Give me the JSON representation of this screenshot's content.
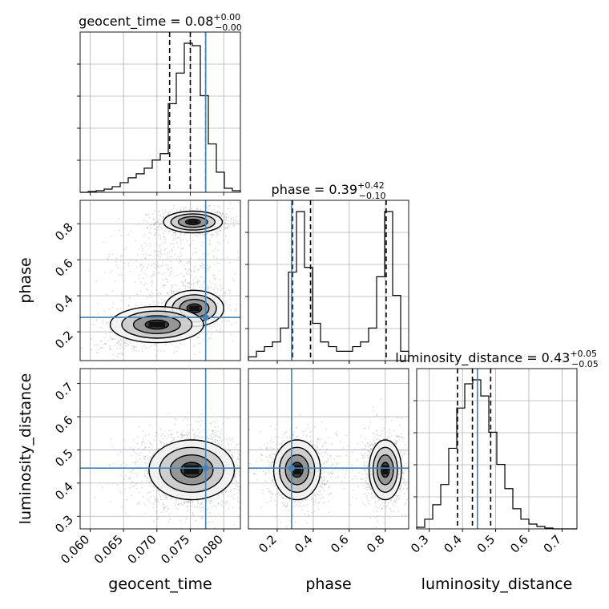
{
  "chart_data": {
    "type": "corner",
    "parameters": [
      "geocent_time",
      "phase",
      "luminosity_distance"
    ],
    "truths": {
      "geocent_time": 0.0773,
      "phase": 0.28,
      "luminosity_distance": 0.445
    },
    "truth_color": "#4682b4",
    "axes": {
      "geocent_time": {
        "range": [
          0.0585,
          0.0825
        ],
        "ticks": [
          "0.060",
          "0.065",
          "0.070",
          "0.075",
          "0.080"
        ],
        "tick_values": [
          0.06,
          0.065,
          0.07,
          0.075,
          0.08
        ]
      },
      "phase": {
        "range": [
          0.04,
          0.93
        ],
        "ticks": [
          "0.2",
          "0.4",
          "0.6",
          "0.8"
        ],
        "tick_values": [
          0.2,
          0.4,
          0.6,
          0.8
        ]
      },
      "luminosity_distance": {
        "range": [
          0.262,
          0.745
        ],
        "ticks": [
          "0.3",
          "0.4",
          "0.5",
          "0.6",
          "0.7"
        ],
        "tick_values": [
          0.3,
          0.4,
          0.5,
          0.6,
          0.7
        ]
      }
    },
    "titles": [
      {
        "param": "geocent_time",
        "base": "geocent_time = 0.08",
        "plus": "+0.00",
        "minus": "−0.00"
      },
      {
        "param": "phase",
        "base": "phase = 0.39",
        "plus": "+0.42",
        "minus": "−0.10"
      },
      {
        "param": "luminosity_distance",
        "base": "luminosity_distance = 0.43",
        "plus": "+0.05",
        "minus": "−0.05"
      }
    ],
    "axis_labels": {
      "geocent_time": "geocent_time",
      "phase": "phase",
      "luminosity_distance": "luminosity_distance"
    },
    "quantile_lines": {
      "geocent_time": [
        0.0719,
        0.075,
        0.0773
      ],
      "phase": [
        0.285,
        0.385,
        0.805
      ],
      "luminosity_distance": [
        0.385,
        0.43,
        0.485
      ]
    },
    "histograms": {
      "geocent_time": {
        "bin_edges": [
          0.0585,
          0.0597,
          0.0609,
          0.0621,
          0.0633,
          0.0645,
          0.0657,
          0.0669,
          0.0681,
          0.0693,
          0.0705,
          0.0717,
          0.0729,
          0.0741,
          0.0753,
          0.0765,
          0.0777,
          0.0789,
          0.0801,
          0.0813,
          0.0825
        ],
        "counts": [
          0,
          1,
          2,
          4,
          7,
          12,
          18,
          23,
          30,
          40,
          48,
          110,
          148,
          185,
          182,
          120,
          60,
          25,
          5,
          2
        ]
      },
      "phase": {
        "bin_edges": [
          0.04,
          0.0845,
          0.129,
          0.1735,
          0.218,
          0.2625,
          0.307,
          0.3515,
          0.396,
          0.4405,
          0.485,
          0.5295,
          0.574,
          0.6185,
          0.663,
          0.7075,
          0.752,
          0.7965,
          0.841,
          0.8855,
          0.93
        ],
        "counts": [
          4,
          10,
          15,
          20,
          35,
          95,
          160,
          100,
          40,
          20,
          15,
          10,
          10,
          15,
          20,
          35,
          90,
          160,
          70,
          10
        ]
      },
      "luminosity_distance": {
        "bin_edges": [
          0.262,
          0.2862,
          0.3103,
          0.3345,
          0.3586,
          0.3828,
          0.4069,
          0.4311,
          0.4552,
          0.4794,
          0.5035,
          0.5277,
          0.5518,
          0.576,
          0.6001,
          0.6243,
          0.6484,
          0.6726,
          0.6967,
          0.7209,
          0.745
        ],
        "counts": [
          2,
          12,
          30,
          55,
          100,
          150,
          180,
          185,
          165,
          120,
          80,
          50,
          25,
          12,
          6,
          3,
          1,
          0,
          0,
          0
        ]
      }
    },
    "density_blobs": {
      "phase_vs_geocent_time": [
        {
          "x": 0.0754,
          "y": 0.81,
          "sx": 0.0022,
          "sy": 0.03,
          "n": 900
        },
        {
          "x": 0.0756,
          "y": 0.33,
          "sx": 0.0022,
          "sy": 0.05,
          "n": 650
        },
        {
          "x": 0.07,
          "y": 0.24,
          "sx": 0.0035,
          "sy": 0.05,
          "n": 350
        },
        {
          "x": 0.066,
          "y": 0.14,
          "sx": 0.0025,
          "sy": 0.03,
          "n": 120
        },
        {
          "x": 0.07,
          "y": 0.58,
          "sx": 0.0035,
          "sy": 0.08,
          "n": 220
        },
        {
          "x": 0.076,
          "y": 0.55,
          "sx": 0.003,
          "sy": 0.1,
          "n": 150
        }
      ],
      "luminosity_distance_vs_geocent_time": [
        {
          "x": 0.0752,
          "y": 0.44,
          "sx": 0.0032,
          "sy": 0.045,
          "n": 2300
        }
      ],
      "luminosity_distance_vs_phase": [
        {
          "x": 0.31,
          "y": 0.44,
          "sx": 0.065,
          "sy": 0.045,
          "n": 1100
        },
        {
          "x": 0.8,
          "y": 0.44,
          "sx": 0.045,
          "sy": 0.045,
          "n": 1000
        },
        {
          "x": 0.55,
          "y": 0.44,
          "sx": 0.15,
          "sy": 0.045,
          "n": 150
        }
      ]
    },
    "contour_levels_sigma": [
      0.5,
      1.0,
      1.5,
      2.0
    ],
    "grid": true
  }
}
